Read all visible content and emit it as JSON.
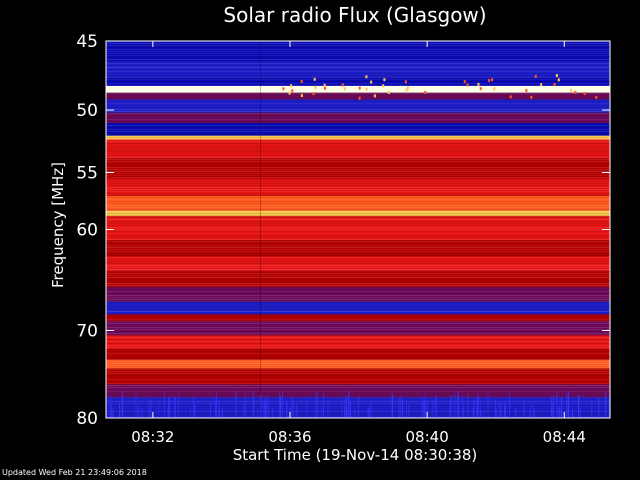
{
  "chart_data": {
    "type": "heatmap",
    "title": "Solar radio Flux (Glasgow)",
    "xlabel": "Start Time (19-Nov-14 08:30:38)",
    "ylabel": "Frequency [MHz]",
    "x_ticks": [
      "08:32",
      "08:36",
      "08:40",
      "08:44"
    ],
    "y_ticks": [
      45,
      50,
      55,
      60,
      70,
      80
    ],
    "ylim": [
      45,
      80
    ],
    "y_scale": "log",
    "x_range": [
      "08:30:38",
      "08:45:20"
    ],
    "colormap": [
      "#0a0ab4",
      "#1e1ec8",
      "#6e0a5a",
      "#b40000",
      "#e61414",
      "#ff5a1e",
      "#ffc850",
      "#ffffe6"
    ],
    "frequency_bands": [
      {
        "from": 45.0,
        "to": 46.4,
        "level": 0
      },
      {
        "from": 46.4,
        "to": 47.6,
        "level": 1
      },
      {
        "from": 47.6,
        "to": 48.2,
        "level": 0
      },
      {
        "from": 48.2,
        "to": 48.7,
        "level": 7
      },
      {
        "from": 48.7,
        "to": 49.2,
        "level": 2
      },
      {
        "from": 49.2,
        "to": 50.2,
        "level": 1
      },
      {
        "from": 50.2,
        "to": 51.0,
        "level": 2
      },
      {
        "from": 51.0,
        "to": 52.0,
        "level": 0
      },
      {
        "from": 52.0,
        "to": 52.3,
        "level": 6
      },
      {
        "from": 52.3,
        "to": 53.8,
        "level": 4
      },
      {
        "from": 53.8,
        "to": 55.5,
        "level": 3
      },
      {
        "from": 55.5,
        "to": 57.0,
        "level": 4
      },
      {
        "from": 57.0,
        "to": 58.3,
        "level": 5
      },
      {
        "from": 58.3,
        "to": 58.8,
        "level": 6
      },
      {
        "from": 58.8,
        "to": 61.0,
        "level": 4
      },
      {
        "from": 61.0,
        "to": 62.5,
        "level": 3
      },
      {
        "from": 62.5,
        "to": 64.0,
        "level": 4
      },
      {
        "from": 64.0,
        "to": 65.5,
        "level": 3
      },
      {
        "from": 65.5,
        "to": 67.0,
        "level": 2
      },
      {
        "from": 67.0,
        "to": 68.3,
        "level": 1
      },
      {
        "from": 68.3,
        "to": 69.0,
        "level": 3
      },
      {
        "from": 69.0,
        "to": 70.5,
        "level": 2
      },
      {
        "from": 70.5,
        "to": 72.0,
        "level": 4
      },
      {
        "from": 72.0,
        "to": 73.2,
        "level": 3
      },
      {
        "from": 73.2,
        "to": 74.2,
        "level": 5
      },
      {
        "from": 74.2,
        "to": 76.0,
        "level": 3
      },
      {
        "from": 76.0,
        "to": 77.5,
        "level": 2
      },
      {
        "from": 77.5,
        "to": 80.0,
        "level": 1
      }
    ]
  },
  "footer_text": "Updated Wed Feb 21 23:49:06 2018"
}
